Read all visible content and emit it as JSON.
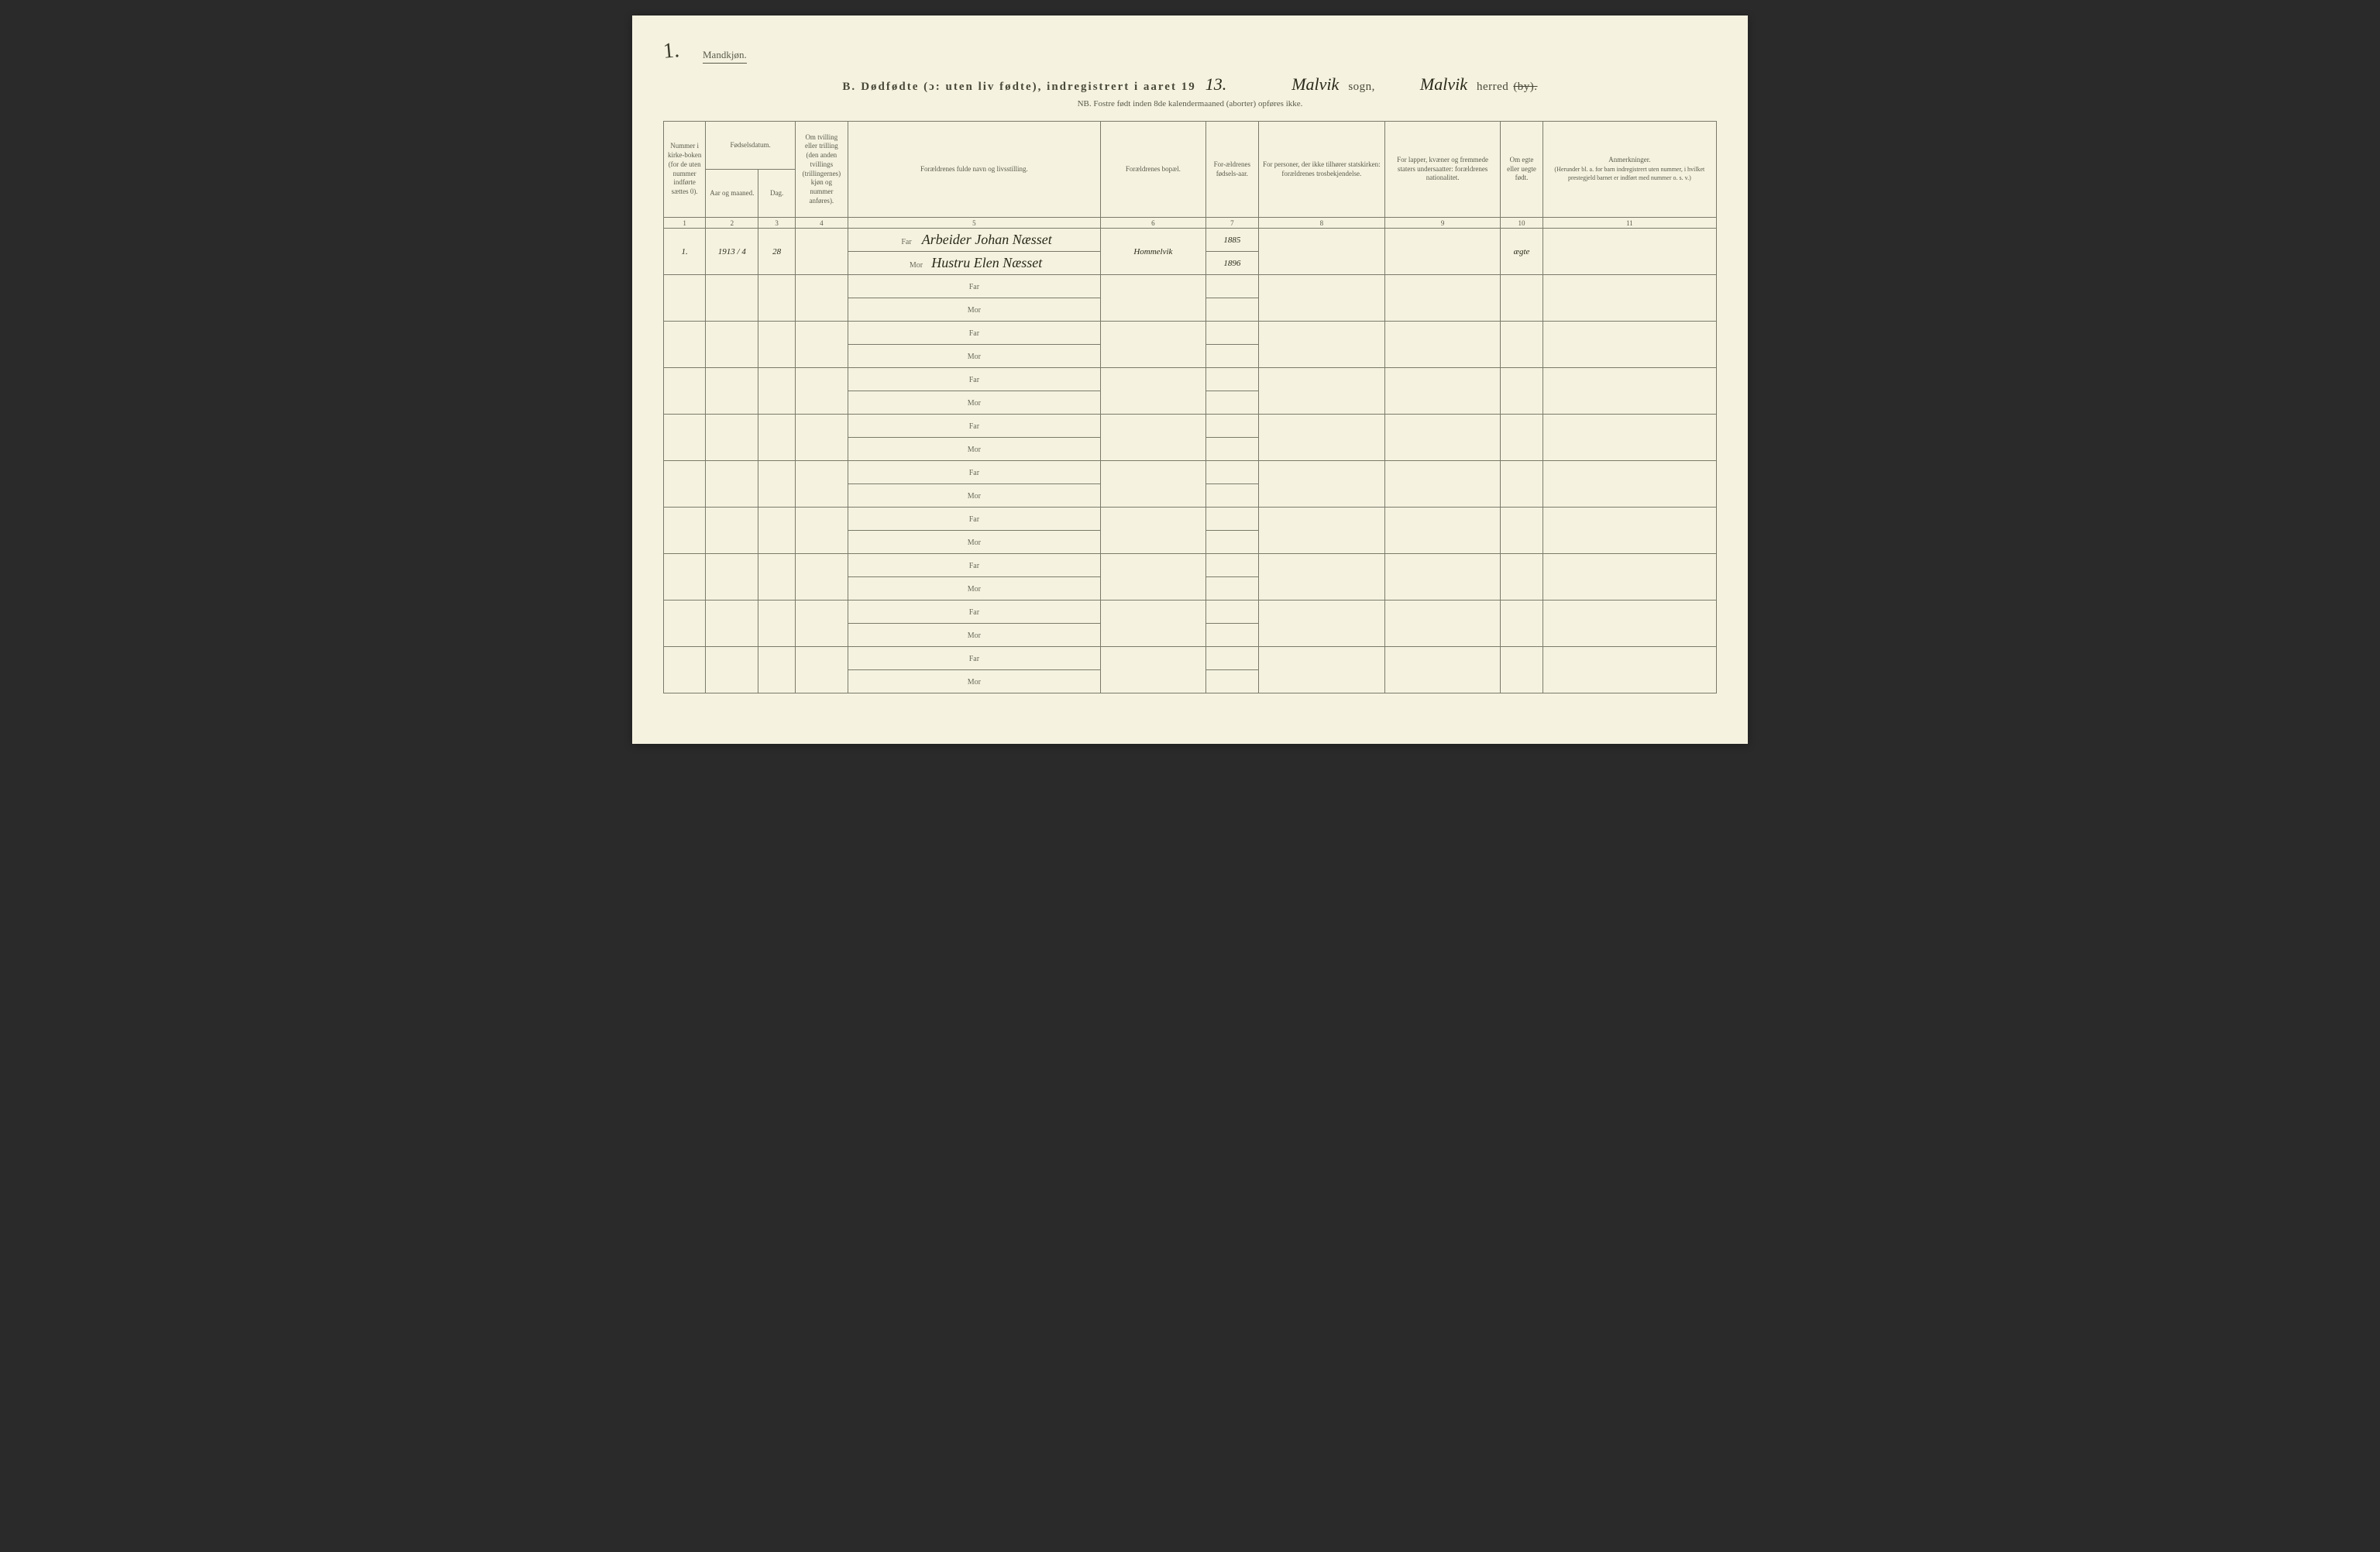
{
  "page_corner_number": "1.",
  "gender_label": "Mandkjøn.",
  "header": {
    "section_letter": "B.",
    "title_printed": "Dødfødte (ɔ: uten liv fødte), indregistrert i aaret 19",
    "year_hw": "13.",
    "sogn_hw": "Malvik",
    "sogn_label": "sogn,",
    "herred_hw": "Malvik",
    "herred_label": "herred",
    "herred_struck": "(by)."
  },
  "sub_note": "NB. Fostre født inden 8de kalendermaaned (aborter) opføres ikke.",
  "columns": {
    "c1": "Nummer i kirke-boken (for de uten nummer indførte sættes 0).",
    "c2_group": "Fødselsdatum.",
    "c2": "Aar og maaned.",
    "c3": "Dag.",
    "c4": "Om tvilling eller trilling (den anden tvillings (trillingernes) kjøn og nummer anføres).",
    "c5": "Forældrenes fulde navn og livsstilling.",
    "c6": "Forældrenes bopæl.",
    "c7": "For-ældrenes fødsels-aar.",
    "c8": "For personer, der ikke tilhører statskirken: forældrenes trosbekjendelse.",
    "c9": "For lapper, kvæner og fremmede staters undersaatter: forældrenes nationalitet.",
    "c10": "Om egte eller uegte født.",
    "c11": "Anmerkninger.",
    "c11_sub": "(Herunder bl. a. for barn indregistrert uten nummer, i hvilket prestegjeld barnet er indført med nummer o. s. v.)"
  },
  "colnums": [
    "1",
    "2",
    "3",
    "4",
    "5",
    "6",
    "7",
    "8",
    "9",
    "10",
    "11"
  ],
  "far_label": "Far",
  "mor_label": "Mor",
  "entry": {
    "num": "1.",
    "year_month": "1913 / 4",
    "day": "28",
    "twin": "",
    "far_name": "Arbeider Johan Næsset",
    "mor_name": "Hustru Elen Næsset",
    "residence": "Hommelvik",
    "far_year": "1885",
    "mor_year": "1896",
    "religion": "",
    "nationality": "",
    "legit": "ægte",
    "remarks": ""
  },
  "blank_rows": 9,
  "colors": {
    "paper": "#f5f2e0",
    "ink_print": "#5a5a4a",
    "ink_hand": "#2a2a1a",
    "rule": "#7a7a6a"
  }
}
